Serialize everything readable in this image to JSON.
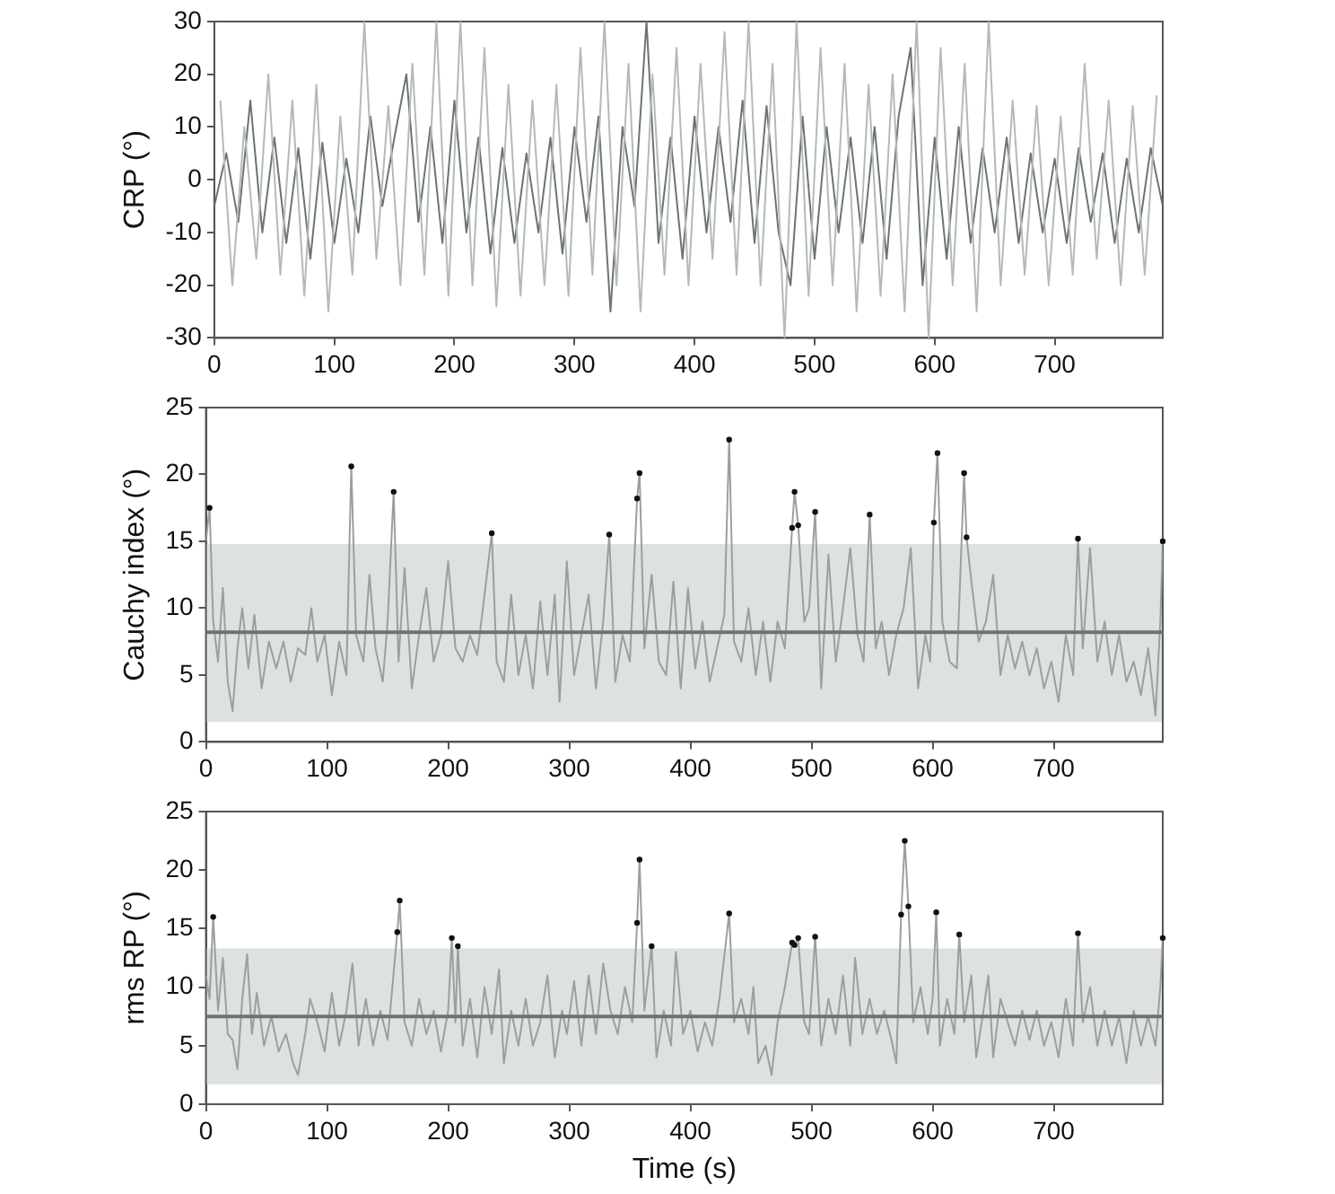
{
  "chart_data": [
    {
      "type": "line",
      "ylabel": "CRP (°)",
      "xlim": [
        0,
        790
      ],
      "xticks": [
        0,
        100,
        200,
        300,
        400,
        500,
        600,
        700
      ],
      "ylim": [
        -30,
        30
      ],
      "yticks": [
        -30,
        -20,
        -10,
        0,
        10,
        20,
        30
      ],
      "legend": false,
      "series": [
        {
          "color": "#b4b9b9",
          "x": [
            5,
            15,
            25,
            35,
            45,
            55,
            65,
            75,
            85,
            95,
            105,
            115,
            125,
            135,
            145,
            155,
            165,
            175,
            185,
            195,
            205,
            215,
            225,
            235,
            245,
            255,
            265,
            275,
            285,
            295,
            305,
            315,
            325,
            335,
            345,
            355,
            365,
            375,
            385,
            395,
            405,
            415,
            425,
            435,
            445,
            455,
            465,
            475,
            485,
            495,
            505,
            515,
            525,
            535,
            545,
            555,
            565,
            575,
            585,
            595,
            605,
            615,
            625,
            635,
            645,
            655,
            665,
            675,
            685,
            695,
            705,
            715,
            725,
            735,
            745,
            755,
            765,
            775,
            785
          ],
          "values": [
            15,
            -20,
            10,
            -15,
            20,
            -18,
            15,
            -22,
            18,
            -25,
            12,
            -18,
            30,
            -15,
            14,
            -20,
            22,
            -18,
            30,
            -22,
            30,
            -20,
            25,
            -24,
            18,
            -22,
            15,
            -20,
            18,
            -22,
            25,
            -18,
            30,
            -20,
            22,
            -25,
            20,
            -18,
            25,
            -20,
            22,
            -15,
            28,
            -18,
            30,
            -20,
            22,
            -30,
            30,
            -22,
            25,
            -20,
            22,
            -25,
            18,
            -22,
            20,
            -25,
            30,
            -30,
            25,
            -20,
            22,
            -25,
            30,
            -20,
            15,
            -18,
            14,
            -20,
            12,
            -18,
            22,
            -15,
            15,
            -20,
            14,
            -18,
            16
          ]
        },
        {
          "color": "#6c7373",
          "x": [
            0,
            10,
            20,
            30,
            40,
            50,
            60,
            70,
            80,
            90,
            100,
            110,
            120,
            130,
            140,
            150,
            160,
            170,
            180,
            190,
            200,
            210,
            220,
            230,
            240,
            250,
            260,
            270,
            280,
            290,
            300,
            310,
            320,
            330,
            340,
            350,
            360,
            370,
            380,
            390,
            400,
            410,
            420,
            430,
            440,
            450,
            460,
            470,
            480,
            490,
            500,
            510,
            520,
            530,
            540,
            550,
            560,
            570,
            580,
            590,
            600,
            610,
            620,
            630,
            640,
            650,
            660,
            670,
            680,
            690,
            700,
            710,
            720,
            730,
            740,
            750,
            760,
            770,
            780,
            790
          ],
          "values": [
            -5,
            5,
            -8,
            15,
            -10,
            8,
            -12,
            6,
            -15,
            7,
            -12,
            4,
            -10,
            12,
            -5,
            8,
            20,
            -8,
            10,
            -12,
            15,
            -10,
            8,
            -14,
            6,
            -12,
            5,
            -10,
            8,
            -14,
            10,
            -8,
            12,
            -25,
            10,
            -5,
            30,
            -12,
            8,
            -15,
            12,
            -10,
            10,
            -8,
            15,
            -12,
            14,
            -10,
            -20,
            12,
            -15,
            10,
            -10,
            8,
            -12,
            10,
            -15,
            12,
            25,
            -20,
            8,
            -15,
            10,
            -12,
            6,
            -10,
            8,
            -12,
            5,
            -10,
            4,
            -12,
            6,
            -8,
            5,
            -12,
            4,
            -10,
            6,
            -5
          ]
        }
      ]
    },
    {
      "type": "line",
      "ylabel": "Cauchy index (°)",
      "xlim": [
        0,
        790
      ],
      "xticks": [
        0,
        100,
        200,
        300,
        400,
        500,
        600,
        700
      ],
      "ylim": [
        0,
        25
      ],
      "yticks": [
        0,
        5,
        10,
        15,
        20,
        25
      ],
      "legend": false,
      "bands": [
        {
          "axis": "y",
          "from": 1.5,
          "to": 14.8,
          "color": "#dde2e0"
        }
      ],
      "ref_lines": [
        {
          "axis": "y",
          "value": 8.2,
          "color": "#6c7373"
        }
      ],
      "series": [
        {
          "color": "#9a9f9f",
          "x": [
            0,
            3,
            6,
            10,
            14,
            18,
            22,
            26,
            30,
            35,
            40,
            46,
            52,
            58,
            64,
            70,
            76,
            82,
            87,
            92,
            98,
            104,
            110,
            116,
            120,
            124,
            130,
            135,
            140,
            146,
            150,
            155,
            159,
            164,
            170,
            176,
            182,
            188,
            194,
            200,
            206,
            212,
            218,
            224,
            230,
            236,
            240,
            246,
            252,
            258,
            264,
            270,
            276,
            282,
            288,
            292,
            298,
            304,
            310,
            316,
            322,
            328,
            333,
            338,
            344,
            350,
            356,
            358,
            362,
            368,
            374,
            380,
            386,
            392,
            398,
            404,
            410,
            416,
            422,
            428,
            432,
            436,
            442,
            448,
            454,
            460,
            466,
            472,
            478,
            484,
            486,
            489,
            494,
            498,
            503,
            508,
            514,
            520,
            526,
            532,
            538,
            543,
            548,
            553,
            558,
            564,
            570,
            576,
            582,
            588,
            594,
            598,
            601,
            604,
            608,
            614,
            620,
            626,
            628,
            632,
            638,
            644,
            650,
            656,
            662,
            668,
            674,
            680,
            686,
            692,
            698,
            704,
            710,
            716,
            720,
            724,
            730,
            736,
            742,
            748,
            754,
            760,
            766,
            772,
            778,
            784,
            788,
            790
          ],
          "values": [
            15,
            17.5,
            9,
            6,
            11.5,
            4.5,
            2.3,
            7,
            10,
            5.5,
            9.5,
            4,
            7.5,
            5.5,
            7.5,
            4.5,
            7,
            6.5,
            10,
            6,
            8,
            3.5,
            7.5,
            5,
            20.6,
            8,
            6,
            12.5,
            7,
            4.5,
            9,
            18.7,
            6,
            13,
            4,
            8,
            11.5,
            6,
            8,
            13.5,
            7,
            6,
            8,
            6.5,
            11,
            15.6,
            6,
            4.5,
            11,
            5,
            8,
            4,
            10.5,
            5,
            11,
            3,
            13.5,
            5,
            8,
            11,
            4,
            9,
            15.5,
            4.5,
            8,
            6,
            18.2,
            20.1,
            7,
            12.5,
            6,
            5,
            12,
            4,
            11.5,
            5.5,
            9,
            4.5,
            7,
            9.5,
            22.6,
            7.5,
            6,
            10,
            5,
            9,
            4.5,
            9,
            7,
            16,
            18.7,
            16.2,
            9,
            10,
            17.2,
            4,
            14,
            6,
            10,
            14.5,
            8,
            6,
            17,
            7,
            9,
            5,
            8,
            10,
            14.5,
            4,
            8,
            6,
            16.4,
            21.6,
            9,
            6,
            5.5,
            20.1,
            15.3,
            12,
            7.5,
            9,
            12.5,
            5,
            8,
            5.5,
            7.5,
            5,
            7,
            4,
            6,
            3,
            8,
            5,
            15.2,
            7,
            14.5,
            6,
            9,
            5,
            8,
            4.5,
            6,
            3.5,
            7,
            2,
            9,
            15
          ]
        },
        {
          "type": "scatter",
          "color": "#111111",
          "marker": "circle",
          "x": [
            3,
            120,
            155,
            236,
            333,
            356,
            358,
            432,
            484,
            486,
            489,
            503,
            548,
            601,
            604,
            626,
            628,
            720,
            790
          ],
          "values": [
            17.5,
            20.6,
            18.7,
            15.6,
            15.5,
            18.2,
            20.1,
            22.6,
            16,
            18.7,
            16.2,
            17.2,
            17,
            16.4,
            21.6,
            20.1,
            15.3,
            15.2,
            15
          ]
        }
      ]
    },
    {
      "type": "line",
      "xlabel": "Time (s)",
      "ylabel": "rms RP (°)",
      "xlim": [
        0,
        790
      ],
      "xticks": [
        0,
        100,
        200,
        300,
        400,
        500,
        600,
        700
      ],
      "ylim": [
        0,
        25
      ],
      "yticks": [
        0,
        5,
        10,
        15,
        20,
        25
      ],
      "legend": false,
      "bands": [
        {
          "axis": "y",
          "from": 1.7,
          "to": 13.3,
          "color": "#dde2e0"
        }
      ],
      "ref_lines": [
        {
          "axis": "y",
          "value": 7.5,
          "color": "#6c7373"
        }
      ],
      "series": [
        {
          "color": "#9a9f9f",
          "x": [
            0,
            3,
            6,
            10,
            14,
            18,
            22,
            26,
            30,
            34,
            38,
            42,
            48,
            54,
            60,
            66,
            72,
            76,
            82,
            86,
            92,
            98,
            104,
            110,
            116,
            121,
            126,
            132,
            138,
            144,
            150,
            158,
            160,
            164,
            170,
            176,
            182,
            188,
            194,
            200,
            203,
            206,
            208,
            212,
            218,
            224,
            230,
            236,
            242,
            246,
            252,
            258,
            264,
            270,
            276,
            282,
            288,
            294,
            298,
            304,
            310,
            316,
            322,
            328,
            334,
            340,
            346,
            352,
            356,
            358,
            362,
            368,
            372,
            378,
            384,
            388,
            394,
            400,
            406,
            412,
            418,
            424,
            432,
            436,
            442,
            448,
            452,
            456,
            462,
            467,
            472,
            478,
            484,
            486,
            489,
            494,
            498,
            503,
            508,
            514,
            520,
            526,
            532,
            536,
            542,
            548,
            554,
            560,
            566,
            570,
            574,
            577,
            580,
            584,
            590,
            596,
            600,
            603,
            606,
            612,
            618,
            622,
            626,
            632,
            636,
            642,
            646,
            650,
            656,
            662,
            668,
            674,
            680,
            686,
            692,
            698,
            704,
            710,
            716,
            720,
            724,
            730,
            736,
            742,
            748,
            754,
            760,
            766,
            772,
            778,
            784,
            788,
            790
          ],
          "values": [
            11,
            9,
            16,
            8,
            12.5,
            6,
            5.5,
            3,
            9,
            12.8,
            6,
            9.5,
            5,
            7.5,
            4.5,
            6,
            3.5,
            2.5,
            6,
            9,
            7,
            4.5,
            9.5,
            5,
            8,
            12,
            5,
            9,
            5,
            8,
            5.5,
            14.7,
            17.4,
            7,
            5,
            9,
            6,
            8,
            4.5,
            8,
            14.2,
            7,
            13.5,
            5,
            9,
            4,
            10,
            6,
            11.5,
            3.5,
            8,
            5,
            9,
            5,
            7,
            11,
            4,
            8,
            6,
            10.5,
            5,
            11,
            6,
            12,
            8,
            6,
            10,
            7,
            15.5,
            20.9,
            8,
            13.5,
            4,
            8,
            5,
            13,
            6,
            8,
            4.5,
            7,
            5,
            9,
            16.3,
            7,
            9,
            6,
            10,
            3.5,
            5,
            2.5,
            7,
            10,
            13.8,
            13.6,
            14.2,
            7,
            6,
            14.3,
            5,
            9,
            6,
            11,
            5,
            12.5,
            6,
            9,
            6,
            8,
            5.5,
            3.5,
            16.2,
            22.5,
            16.9,
            7,
            10,
            6,
            9,
            16.4,
            5,
            9,
            6,
            14.5,
            7,
            11,
            4,
            8,
            11,
            4,
            9,
            7,
            5,
            8,
            5.5,
            8,
            5,
            7,
            4,
            9,
            5,
            14.6,
            7,
            10,
            5,
            8,
            5,
            7.5,
            3.5,
            8,
            5,
            7.5,
            5,
            10,
            14.2
          ]
        },
        {
          "type": "scatter",
          "color": "#111111",
          "marker": "circle",
          "x": [
            6,
            158,
            160,
            203,
            208,
            356,
            358,
            368,
            432,
            484,
            486,
            489,
            503,
            574,
            577,
            580,
            603,
            622,
            720,
            790
          ],
          "values": [
            16,
            14.7,
            17.4,
            14.2,
            13.5,
            15.5,
            20.9,
            13.5,
            16.3,
            13.8,
            13.6,
            14.2,
            14.3,
            16.2,
            22.5,
            16.9,
            16.4,
            14.5,
            14.6,
            14.2
          ]
        }
      ]
    }
  ]
}
